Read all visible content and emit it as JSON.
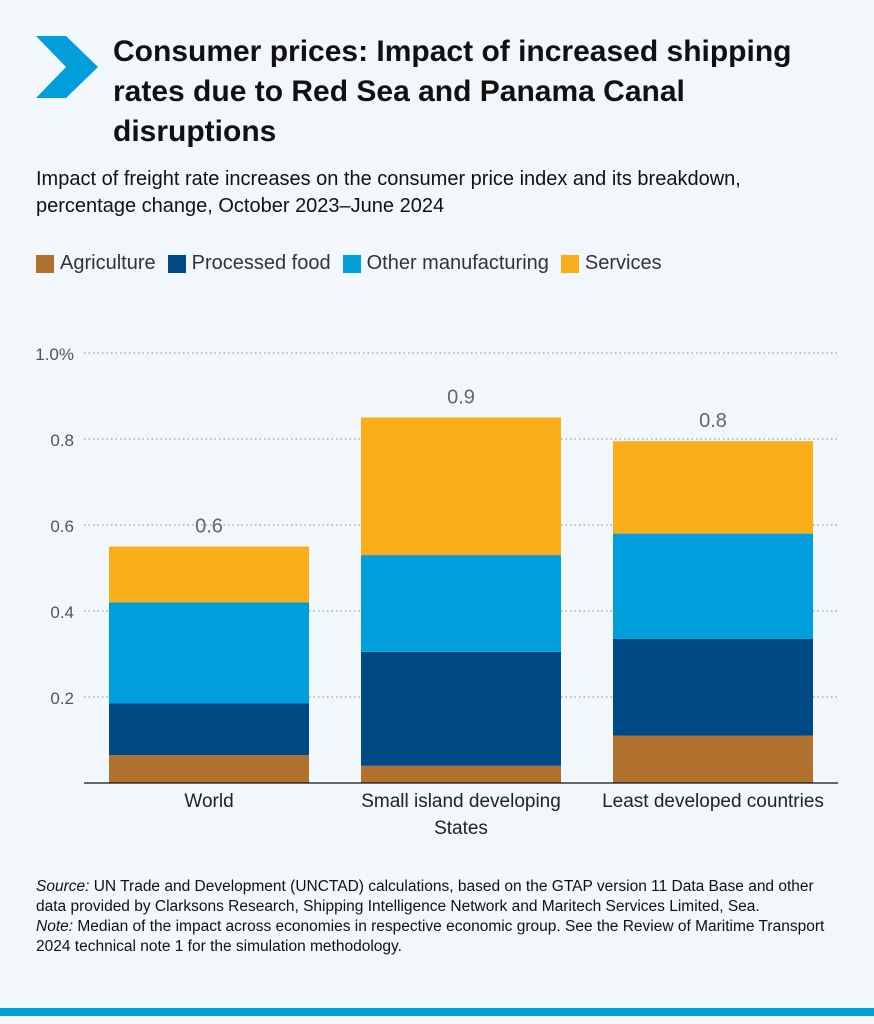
{
  "header": {
    "title": "Consumer prices: Impact of increased shipping rates due to Red Sea and Panama Canal disruptions",
    "subtitle": "Impact of freight rate increases on the consumer price index and its breakdown, percentage change, October 2023–June 2024",
    "arrow_icon": "chevron-right-icon"
  },
  "colors": {
    "agriculture": "#b0712f",
    "processed_food": "#004987",
    "other_manufacturing": "#009edb",
    "services": "#f9ae1a",
    "accent": "#009edb"
  },
  "chart_data": {
    "type": "bar",
    "stacked": true,
    "categories": [
      "World",
      "Small island developing States",
      "Least developed countries"
    ],
    "category_lines": [
      [
        "World"
      ],
      [
        "Small island developing",
        "States"
      ],
      [
        "Least developed countries"
      ]
    ],
    "series": [
      {
        "name": "Agriculture",
        "color": "#b0712f",
        "values": [
          0.065,
          0.04,
          0.11
        ]
      },
      {
        "name": "Processed food",
        "color": "#004987",
        "values": [
          0.12,
          0.265,
          0.225
        ]
      },
      {
        "name": "Other manufacturing",
        "color": "#009edb",
        "values": [
          0.235,
          0.225,
          0.245
        ]
      },
      {
        "name": "Services",
        "color": "#f9ae1a",
        "values": [
          0.13,
          0.32,
          0.215
        ]
      }
    ],
    "totals_labels": [
      "0.6",
      "0.9",
      "0.8"
    ],
    "yticks": [
      {
        "value": 0.2,
        "label": "0.2"
      },
      {
        "value": 0.4,
        "label": "0.4"
      },
      {
        "value": 0.6,
        "label": "0.6"
      },
      {
        "value": 0.8,
        "label": "0.8"
      },
      {
        "value": 1.0,
        "label": "1.0%"
      }
    ],
    "ylim": [
      0,
      1.0
    ],
    "grid": true,
    "legend_position": "top-left"
  },
  "footnote": {
    "source_label": "Source:",
    "source_text": " UN Trade and Development (UNCTAD) calculations, based on the GTAP version 11 Data Base and other data provided by Clarksons Research, Shipping Intelligence Network and Maritech Services Limited, Sea.",
    "note_label": "Note:",
    "note_text": " Median of the impact across economies in respective economic group. See the Review of Maritime Transport 2024 technical note 1 for the simulation methodology."
  }
}
